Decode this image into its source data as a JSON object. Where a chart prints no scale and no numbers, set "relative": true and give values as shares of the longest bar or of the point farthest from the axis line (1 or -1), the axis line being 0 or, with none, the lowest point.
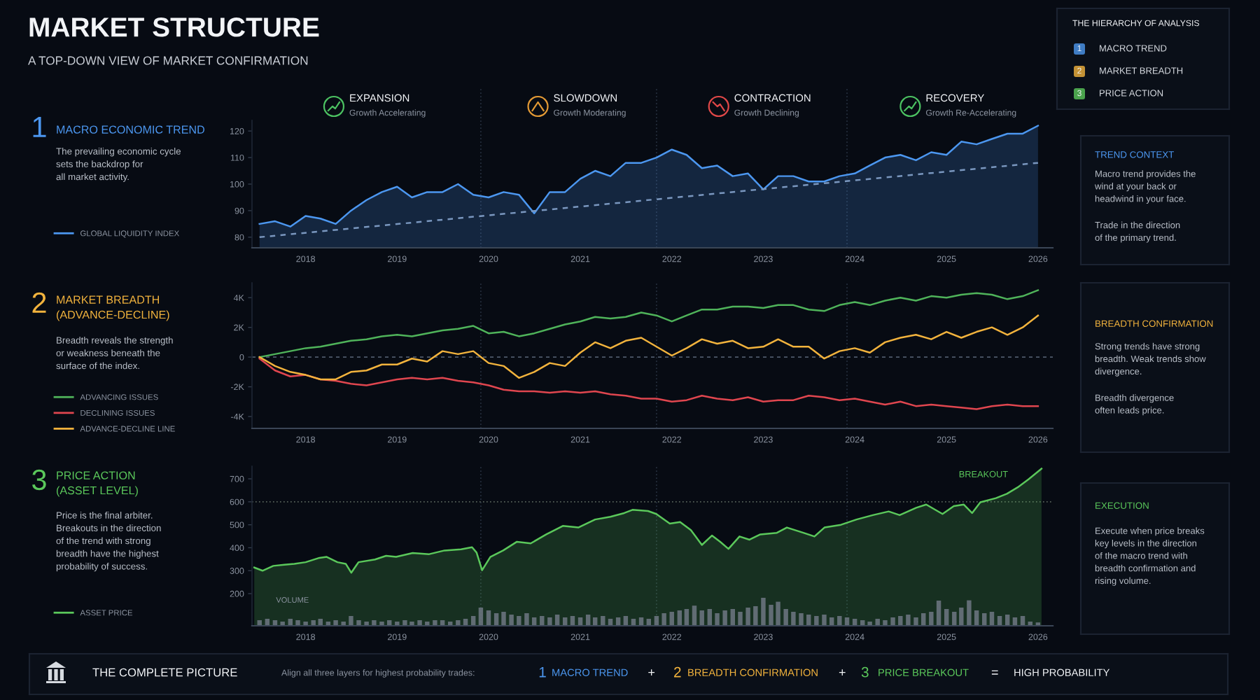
{
  "chart_data": [
    {
      "type": "other",
      "title": "MARKET STRUCTURE",
      "subtitle": "A TOP-DOWN VIEW OF MARKET CONFIRMATION"
    },
    {
      "type": "other",
      "title": "THE HIERARCHY OF ANALYSIS",
      "annotations": [
        "1",
        "MACRO TREND",
        "2",
        "MARKET BREADTH",
        "3",
        "PRICE ACTION"
      ]
    },
    {
      "type": "other",
      "title": "MACRO ECONOMIC TREND",
      "subtitle": "The prevailing economic cycle\nsets the backdrop for\nall market activity.",
      "annotations": [
        "1"
      ]
    },
    {
      "type": "line",
      "annotations": [
        "EXPANSION",
        "Growth Accelerating",
        "SLOWDOWN",
        "Growth Moderating",
        "CONTRACTION",
        "Growth Declining",
        "RECOVERY",
        "Growth Re-Accelerating"
      ],
      "x": [
        "2017-07",
        "2017-09",
        "2017-11",
        "2018-01",
        "2018-03",
        "2018-05",
        "2018-07",
        "2018-09",
        "2018-11",
        "2019-01",
        "2019-03",
        "2019-05",
        "2019-07",
        "2019-09",
        "2019-11",
        "2020-01",
        "2020-03",
        "2020-05",
        "2020-07",
        "2020-09",
        "2020-11",
        "2021-01",
        "2021-03",
        "2021-05",
        "2021-07",
        "2021-09",
        "2021-11",
        "2022-01",
        "2022-03",
        "2022-05",
        "2022-07",
        "2022-09",
        "2022-11",
        "2023-01",
        "2023-03",
        "2023-05",
        "2023-07",
        "2023-09",
        "2023-11",
        "2024-01",
        "2024-03",
        "2024-05",
        "2024-07",
        "2024-09",
        "2024-11",
        "2025-01",
        "2025-03",
        "2025-05",
        "2025-07",
        "2025-09",
        "2025-11",
        "2026-01"
      ],
      "series": [
        {
          "type": "area",
          "name": "GLOBAL LIQUIDITY INDEX",
          "color": "#4c97f0",
          "values": [
            85,
            86,
            84,
            88,
            87,
            85,
            90,
            94,
            97,
            99,
            95,
            97,
            97,
            100,
            96,
            95,
            97,
            96,
            89,
            97,
            97,
            102,
            105,
            103,
            108,
            108,
            110,
            113,
            111,
            106,
            107,
            103,
            104,
            98,
            103,
            103,
            101,
            101,
            103,
            104,
            107,
            110,
            111,
            109,
            112,
            111,
            116,
            115,
            117,
            119,
            119,
            122
          ]
        },
        {
          "type": "line",
          "x": [
            "2017-07",
            "2026-01"
          ],
          "values": [
            80,
            108
          ],
          "color": "#7a97bf",
          "line_style": "dashed"
        }
      ],
      "xlim": [
        "2017-06",
        "2026-03"
      ],
      "xticks": [
        "2018",
        "2019",
        "2020",
        "2021",
        "2022",
        "2023",
        "2024",
        "2025",
        "2026"
      ],
      "ylim": [
        76,
        124
      ],
      "yticks": [
        80,
        90,
        100,
        110,
        120
      ],
      "ref_lines": [
        {
          "axis": "x",
          "value": "2019-12",
          "color": "#283242",
          "line_style": "dotted"
        },
        {
          "axis": "x",
          "value": "2021-11",
          "color": "#283242",
          "line_style": "dotted"
        },
        {
          "axis": "x",
          "value": "2023-12",
          "color": "#283242",
          "line_style": "dotted"
        }
      ],
      "legend": "left"
    },
    {
      "type": "other",
      "title": "TREND CONTEXT",
      "annotations": [
        "Macro trend provides the\nwind at your back or\nheadwind in your face.",
        "Trade in the direction\nof the primary trend."
      ]
    },
    {
      "type": "other",
      "title": "MARKET BREADTH\n(ADVANCE-DECLINE)",
      "subtitle": "Breadth reveals the strength\nor weakness beneath the\nsurface of the index.",
      "annotations": [
        "2"
      ]
    },
    {
      "type": "line",
      "x": [
        "2017-07",
        "2017-09",
        "2017-11",
        "2018-01",
        "2018-03",
        "2018-05",
        "2018-07",
        "2018-09",
        "2018-11",
        "2019-01",
        "2019-03",
        "2019-05",
        "2019-07",
        "2019-09",
        "2019-11",
        "2020-01",
        "2020-03",
        "2020-05",
        "2020-07",
        "2020-09",
        "2020-11",
        "2021-01",
        "2021-03",
        "2021-05",
        "2021-07",
        "2021-09",
        "2021-11",
        "2022-01",
        "2022-03",
        "2022-05",
        "2022-07",
        "2022-09",
        "2022-11",
        "2023-01",
        "2023-03",
        "2023-05",
        "2023-07",
        "2023-09",
        "2023-11",
        "2024-01",
        "2024-03",
        "2024-05",
        "2024-07",
        "2024-09",
        "2024-11",
        "2025-01",
        "2025-03",
        "2025-05",
        "2025-07",
        "2025-09",
        "2025-11",
        "2026-01"
      ],
      "series": [
        {
          "name": "ADVANCING ISSUES",
          "color": "#4fb35a",
          "values": [
            0,
            200,
            400,
            600,
            700,
            900,
            1100,
            1200,
            1400,
            1500,
            1400,
            1600,
            1800,
            1900,
            2100,
            1600,
            1700,
            1400,
            1600,
            1900,
            2200,
            2400,
            2700,
            2600,
            2700,
            3000,
            2800,
            2400,
            2800,
            3200,
            3200,
            3400,
            3400,
            3300,
            3500,
            3500,
            3200,
            3100,
            3500,
            3700,
            3500,
            3800,
            4000,
            3800,
            4100,
            4000,
            4200,
            4300,
            4200,
            3900,
            4100,
            4500
          ]
        },
        {
          "name": "DECLINING ISSUES",
          "color": "#e0464f",
          "values": [
            -100,
            -900,
            -1300,
            -1200,
            -1500,
            -1600,
            -1800,
            -1900,
            -1700,
            -1500,
            -1400,
            -1500,
            -1400,
            -1600,
            -1700,
            -1900,
            -2200,
            -2300,
            -2300,
            -2400,
            -2300,
            -2400,
            -2300,
            -2500,
            -2600,
            -2800,
            -2800,
            -3000,
            -2900,
            -2600,
            -2800,
            -2900,
            -2700,
            -3000,
            -2900,
            -2900,
            -2600,
            -2700,
            -2900,
            -2800,
            -3000,
            -3200,
            -3000,
            -3300,
            -3200,
            -3300,
            -3400,
            -3500,
            -3300,
            -3200,
            -3300,
            -3300
          ]
        },
        {
          "name": "ADVANCE-DECLINE LINE",
          "color": "#f2b33d",
          "values": [
            0,
            -600,
            -1000,
            -1200,
            -1500,
            -1500,
            -1000,
            -900,
            -500,
            -500,
            -100,
            -300,
            400,
            200,
            400,
            -400,
            -600,
            -1400,
            -1000,
            -400,
            -600,
            300,
            1000,
            600,
            1100,
            1300,
            700,
            100,
            600,
            1200,
            900,
            1100,
            600,
            700,
            1200,
            700,
            700,
            -100,
            400,
            600,
            300,
            1000,
            1300,
            1500,
            1200,
            1700,
            1300,
            1700,
            2000,
            1500,
            2000,
            2800
          ]
        }
      ],
      "xlim": [
        "2017-06",
        "2026-03"
      ],
      "xticks": [
        "2018",
        "2019",
        "2020",
        "2021",
        "2022",
        "2023",
        "2024",
        "2025",
        "2026"
      ],
      "ylim": [
        -4800,
        5000
      ],
      "yticks": [
        {
          "value": -4000,
          "label": "-4K"
        },
        {
          "value": -2000,
          "label": "-2K"
        },
        0,
        {
          "value": 2000,
          "label": "2K"
        },
        {
          "value": 4000,
          "label": "4K"
        }
      ],
      "ref_lines": [
        {
          "axis": "x",
          "value": "2019-12",
          "color": "#283242",
          "line_style": "dotted"
        },
        {
          "axis": "x",
          "value": "2021-11",
          "color": "#283242",
          "line_style": "dotted"
        },
        {
          "axis": "x",
          "value": "2023-12",
          "color": "#283242",
          "line_style": "dotted"
        },
        {
          "axis": "y",
          "value": 0,
          "color": "#4f5a6b",
          "line_style": "dashed"
        }
      ],
      "legend": "left"
    },
    {
      "type": "other",
      "title": "BREADTH CONFIRMATION",
      "annotations": [
        "Strong trends have strong\nbreadth. Weak trends show\ndivergence.",
        "Breadth divergence\noften leads price."
      ]
    },
    {
      "type": "other",
      "title": "PRICE ACTION\n(ASSET LEVEL)",
      "subtitle": "Price is the final arbiter.\nBreakouts in the direction\nof the trend with strong\nbreadth have the highest\nprobability of success.",
      "annotations": [
        "3"
      ]
    },
    {
      "type": "line",
      "annotations": [
        {
          "text": "BREAKOUT",
          "x": "2025-10-20",
          "y": 665
        }
      ],
      "x": [
        "2017-06-10",
        "2017-07-13",
        "2017-08-25",
        "2017-10-08",
        "2017-11-17",
        "2018-01-01",
        "2018-02-25",
        "2018-03-26",
        "2018-05-08",
        "2018-06-10",
        "2018-07-02",
        "2018-07-31",
        "2018-10-05",
        "2018-11-18",
        "2018-12-28",
        "2019-03-04",
        "2019-05-09",
        "2019-07-09",
        "2019-09-13",
        "2019-10-27",
        "2019-11-14",
        "2019-12-06",
        "2020-01-08",
        "2020-02-28",
        "2020-04-23",
        "2020-06-17",
        "2020-08-18",
        "2020-10-23",
        "2020-12-24",
        "2021-03-01",
        "2021-05-01",
        "2021-06-25",
        "2021-07-28",
        "2021-09-28",
        "2021-10-31",
        "2021-12-24",
        "2022-02-03",
        "2022-03-18",
        "2022-05-01",
        "2022-06-10",
        "2022-07-13",
        "2022-08-15",
        "2022-09-28",
        "2022-11-07",
        "2022-12-20",
        "2023-02-24",
        "2023-04-05",
        "2023-06-10",
        "2023-07-24",
        "2023-09-02",
        "2023-11-07",
        "2024-01-08",
        "2024-03-13",
        "2024-05-15",
        "2024-06-28",
        "2024-09-02",
        "2024-10-12",
        "2024-12-16",
        "2025-01-30",
        "2025-03-11",
        "2025-04-13",
        "2025-05-16",
        "2025-07-17",
        "2025-08-30",
        "2025-10-12",
        "2025-11-24",
        "2026-01-15"
      ],
      "series": [
        {
          "type": "area",
          "name": "ASSET PRICE",
          "color": "#5bc85b",
          "values": [
            314,
            300,
            321,
            326,
            330,
            337,
            356,
            360,
            337,
            330,
            291,
            337,
            349,
            365,
            360,
            377,
            372,
            388,
            393,
            402,
            379,
            302,
            360,
            388,
            426,
            419,
            458,
            495,
            488,
            523,
            535,
            551,
            565,
            560,
            547,
            505,
            512,
            477,
            412,
            453,
            426,
            395,
            449,
            435,
            458,
            465,
            488,
            465,
            449,
            488,
            500,
            523,
            542,
            558,
            542,
            574,
            588,
            547,
            581,
            588,
            551,
            598,
            616,
            635,
            663,
            698,
            744
          ]
        }
      ],
      "xlim": [
        "2017-06",
        "2026-03"
      ],
      "ylim": [
        60,
        755
      ],
      "yticks": [
        200,
        300,
        400,
        500,
        600,
        700
      ],
      "ref_lines": [
        {
          "axis": "x",
          "value": "2019-12",
          "color": "#283242",
          "line_style": "dotted"
        },
        {
          "axis": "x",
          "value": "2021-11",
          "color": "#283242",
          "line_style": "dotted"
        },
        {
          "axis": "x",
          "value": "2023-12",
          "color": "#283242",
          "line_style": "dotted"
        },
        {
          "axis": "y",
          "value": 600,
          "color": "#56625a",
          "line_style": "dotted"
        }
      ],
      "tick_labels": "y",
      "legend": "left"
    },
    {
      "type": "bar",
      "relative": true,
      "x": [
        "2017-07",
        "2017-08",
        "2017-09",
        "2017-10",
        "2017-11",
        "2017-12",
        "2018-01",
        "2018-02",
        "2018-03",
        "2018-04",
        "2018-05",
        "2018-06",
        "2018-07",
        "2018-08",
        "2018-09",
        "2018-10",
        "2018-11",
        "2018-12",
        "2019-01",
        "2019-02",
        "2019-03",
        "2019-04",
        "2019-05",
        "2019-06",
        "2019-07",
        "2019-08",
        "2019-09",
        "2019-10",
        "2019-11",
        "2019-12",
        "2020-01",
        "2020-02",
        "2020-03",
        "2020-04",
        "2020-05",
        "2020-06",
        "2020-07",
        "2020-08",
        "2020-09",
        "2020-10",
        "2020-11",
        "2020-12",
        "2021-01",
        "2021-02",
        "2021-03",
        "2021-04",
        "2021-05",
        "2021-06",
        "2021-07",
        "2021-08",
        "2021-09",
        "2021-10",
        "2021-11",
        "2021-12",
        "2022-01",
        "2022-02",
        "2022-03",
        "2022-04",
        "2022-05",
        "2022-06",
        "2022-07",
        "2022-08",
        "2022-09",
        "2022-10",
        "2022-11",
        "2022-12",
        "2023-01",
        "2023-02",
        "2023-03",
        "2023-04",
        "2023-05",
        "2023-06",
        "2023-07",
        "2023-08",
        "2023-09",
        "2023-10",
        "2023-11",
        "2023-12",
        "2024-01",
        "2024-02",
        "2024-03",
        "2024-04",
        "2024-05",
        "2024-06",
        "2024-07",
        "2024-08",
        "2024-09",
        "2024-10",
        "2024-11",
        "2024-12",
        "2025-01",
        "2025-02",
        "2025-03",
        "2025-04",
        "2025-05",
        "2025-06",
        "2025-07",
        "2025-08",
        "2025-09",
        "2025-10",
        "2025-11",
        "2025-12",
        "2026-01"
      ],
      "series": [
        {
          "name": "VOLUME",
          "color": "#6f7783",
          "values": [
            0.2,
            0.25,
            0.2,
            0.15,
            0.25,
            0.2,
            0.15,
            0.2,
            0.25,
            0.15,
            0.2,
            0.15,
            0.35,
            0.2,
            0.15,
            0.2,
            0.15,
            0.2,
            0.15,
            0.2,
            0.15,
            0.2,
            0.15,
            0.2,
            0.2,
            0.15,
            0.2,
            0.25,
            0.35,
            0.65,
            0.55,
            0.45,
            0.5,
            0.4,
            0.35,
            0.45,
            0.3,
            0.35,
            0.3,
            0.4,
            0.3,
            0.35,
            0.3,
            0.4,
            0.3,
            0.35,
            0.25,
            0.3,
            0.35,
            0.25,
            0.3,
            0.25,
            0.35,
            0.45,
            0.5,
            0.55,
            0.6,
            0.72,
            0.55,
            0.6,
            0.45,
            0.55,
            0.6,
            0.5,
            0.65,
            0.7,
            1.0,
            0.75,
            0.86,
            0.6,
            0.5,
            0.45,
            0.4,
            0.35,
            0.4,
            0.3,
            0.35,
            0.3,
            0.25,
            0.2,
            0.15,
            0.25,
            0.2,
            0.3,
            0.35,
            0.4,
            0.3,
            0.45,
            0.5,
            0.9,
            0.6,
            0.5,
            0.65,
            0.91,
            0.55,
            0.45,
            0.5,
            0.35,
            0.4,
            0.3,
            0.35,
            0.15,
            0.12
          ]
        }
      ],
      "xlim": [
        "2017-06",
        "2026-03"
      ],
      "xticks": [
        "2018",
        "2019",
        "2020",
        "2021",
        "2022",
        "2023",
        "2024",
        "2025",
        "2026"
      ],
      "tick_labels": "x"
    },
    {
      "type": "other",
      "title": "EXECUTION",
      "annotations": [
        "Execute when price breaks\nkey levels in the direction\nof the macro trend with\nbreadth confirmation and\nrising volume."
      ]
    },
    {
      "type": "other",
      "title": "THE COMPLETE PICTURE",
      "subtitle": "Align all three layers for highest probability trades:",
      "annotations": [
        "1",
        "MACRO TREND",
        "+",
        "2",
        "BREADTH CONFIRMATION",
        "+",
        "3",
        "PRICE BREAKOUT",
        "=",
        "HIGH PROBABILITY"
      ]
    }
  ]
}
